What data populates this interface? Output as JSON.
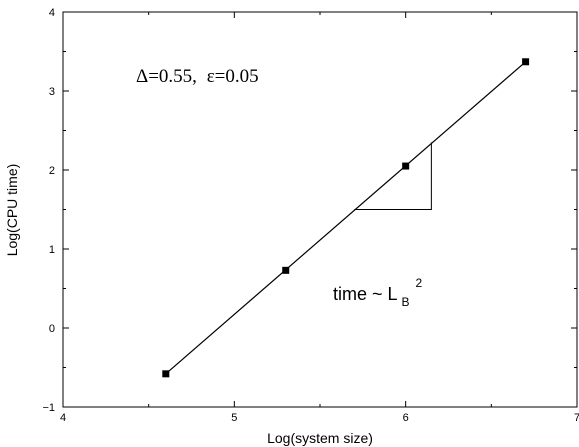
{
  "chart_data": {
    "type": "line",
    "xlabel": "Log(system size)",
    "ylabel": "Log(CPU time)",
    "xlim": [
      4,
      7
    ],
    "ylim": [
      -1,
      4
    ],
    "xticks": [
      4,
      5,
      6,
      7
    ],
    "yticks": [
      -1,
      0,
      1,
      2,
      3,
      4
    ],
    "grid": false,
    "series": [
      {
        "marker": "square",
        "color": "#000000",
        "points": [
          {
            "x": 4.6,
            "y": -0.58
          },
          {
            "x": 5.3,
            "y": 0.73
          },
          {
            "x": 6.0,
            "y": 2.05
          },
          {
            "x": 6.7,
            "y": 3.37
          }
        ]
      }
    ],
    "fit_line": {
      "from": {
        "x": 4.6,
        "y": -0.58
      },
      "to": {
        "x": 6.7,
        "y": 3.37
      }
    },
    "slope_triangle": {
      "x0": 5.7,
      "x1": 6.15,
      "y0": 1.5,
      "y1": 2.35
    },
    "annotations": {
      "params": {
        "delta": "Δ=0.55,",
        "eps": "ε=0.05"
      },
      "scaling": {
        "main": "time ~ L",
        "sub": "B",
        "sup": "2"
      }
    }
  }
}
